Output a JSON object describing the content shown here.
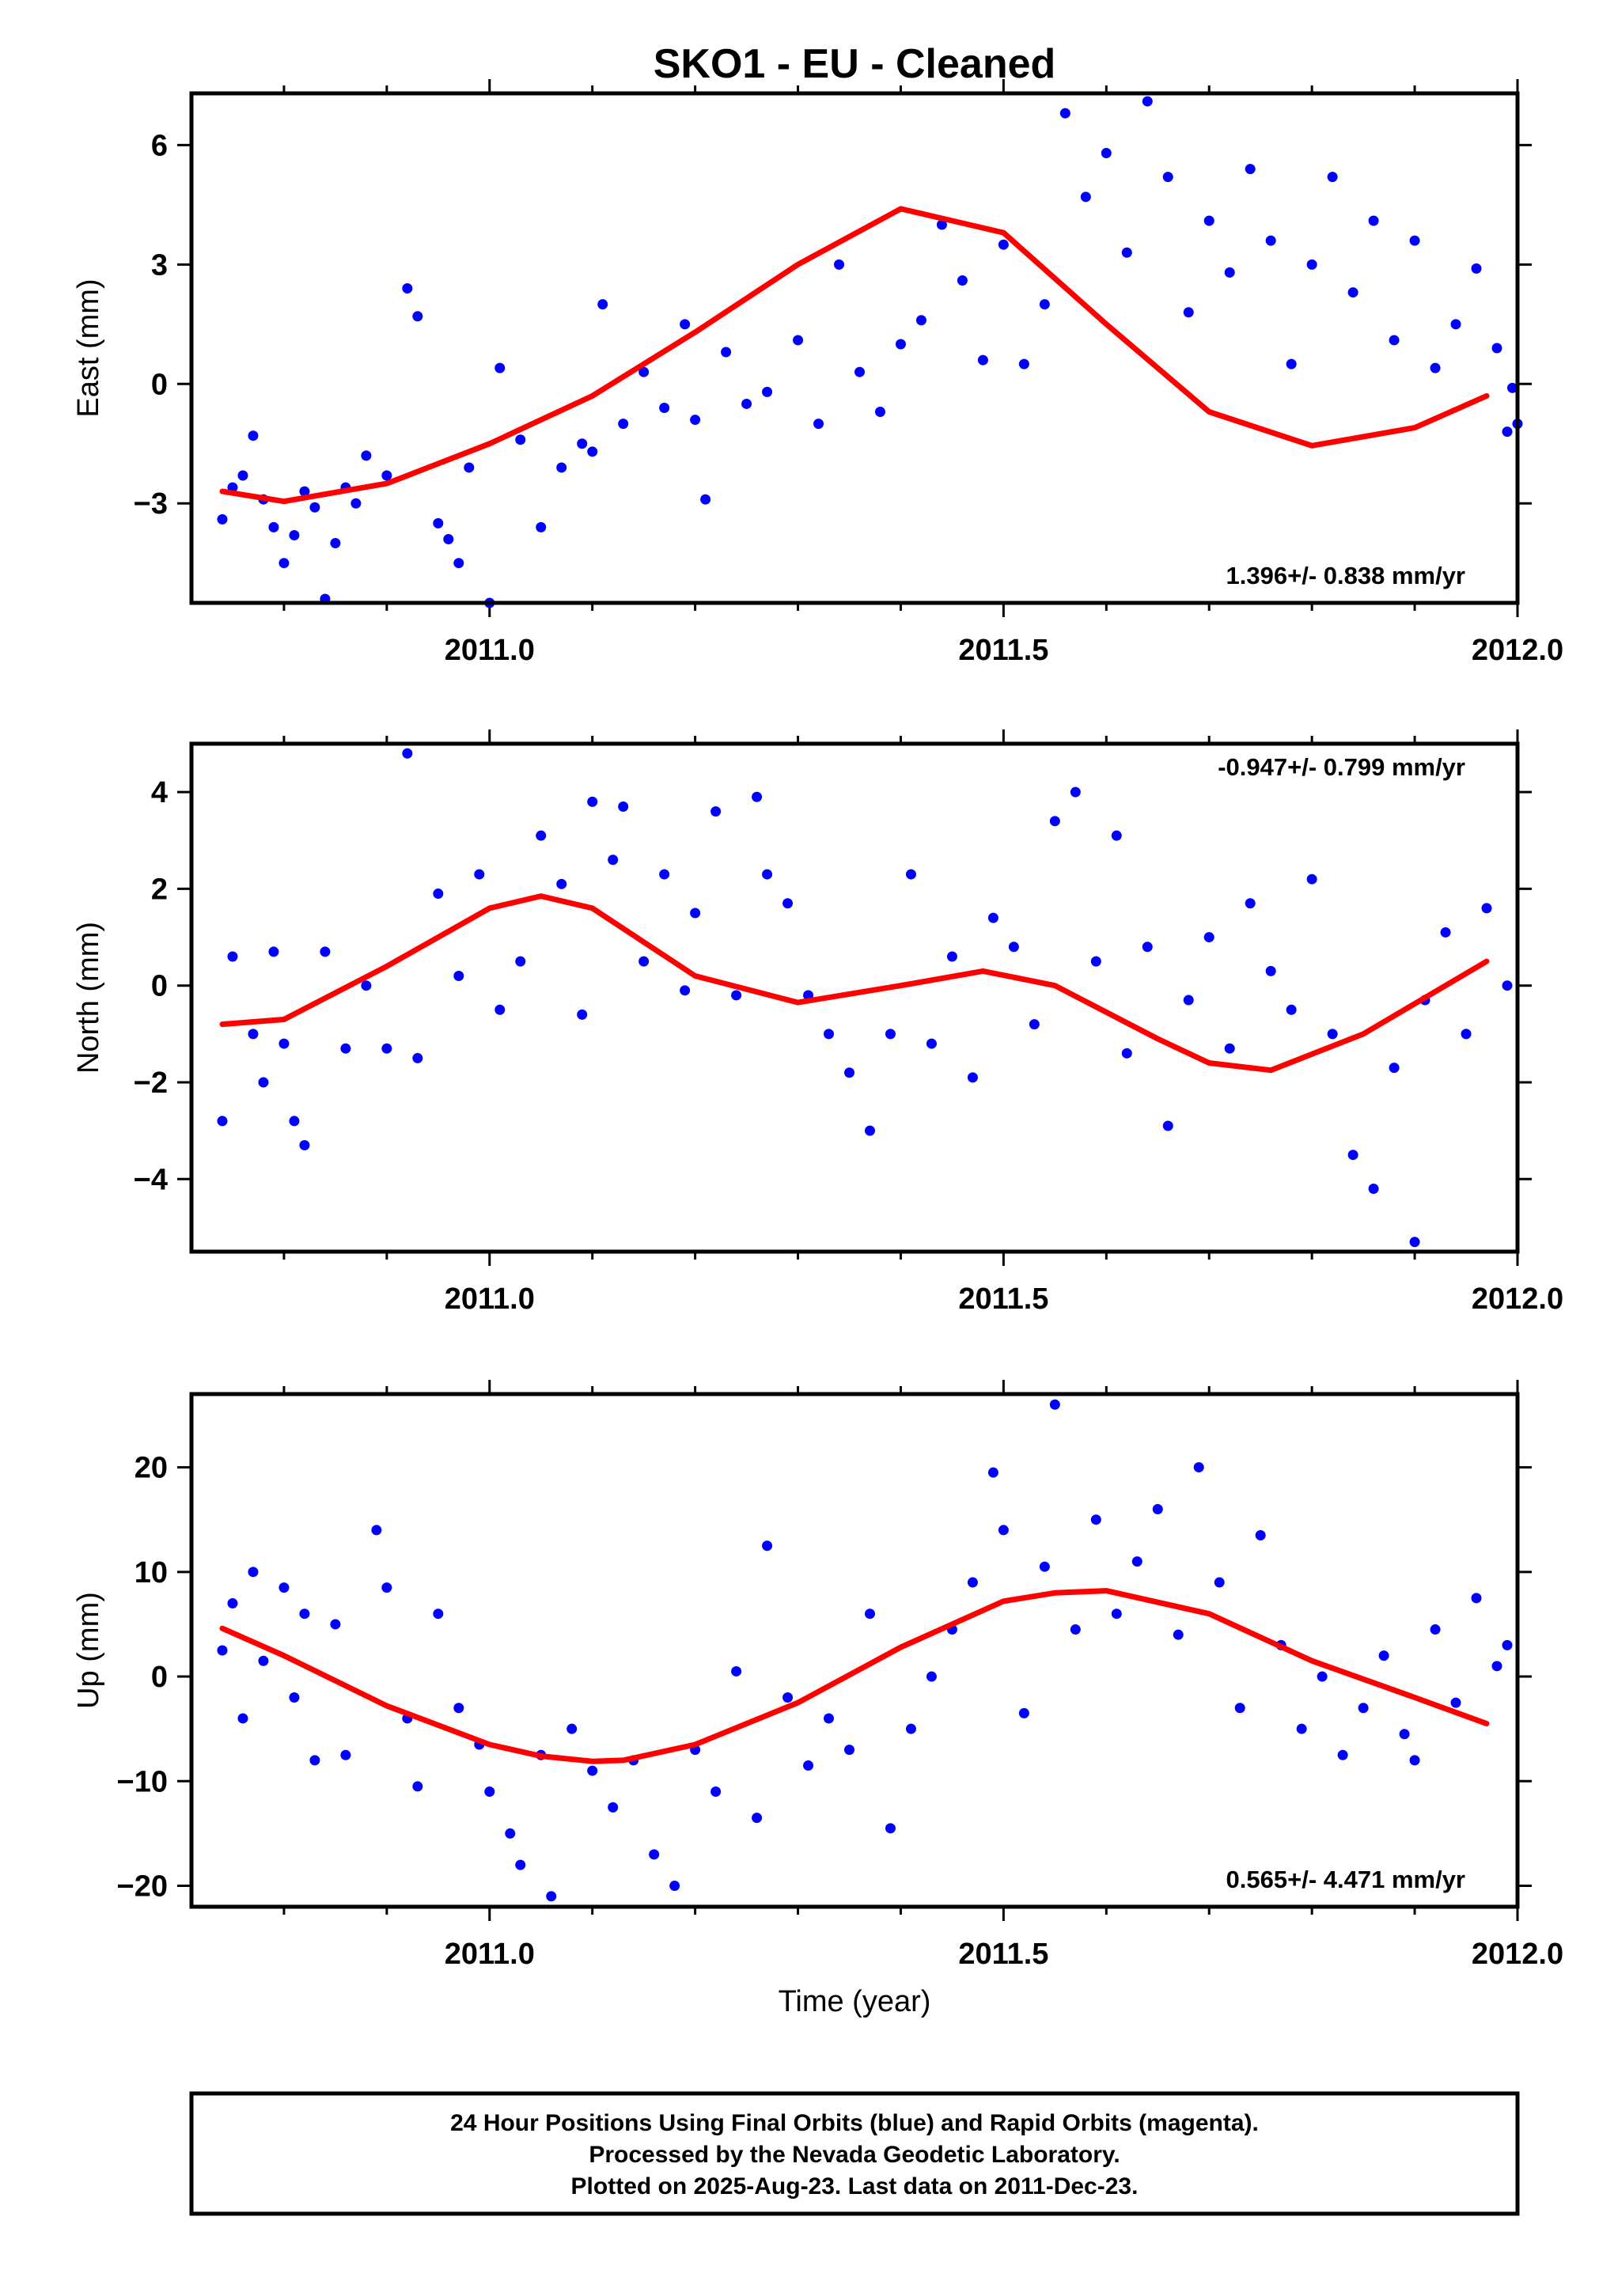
{
  "figure": {
    "title": "SKO1  - EU - Cleaned",
    "xlabel": "Time (year)",
    "footer_lines": [
      "24 Hour Positions Using Final Orbits (blue) and Rapid Orbits (magenta).",
      "Processed by the Nevada Geodetic Laboratory.",
      "Plotted on 2025-Aug-23. Last data on 2011-Dec-23."
    ],
    "colors": {
      "points": "#0000ff",
      "fit": "#ff0000",
      "frame": "#000000"
    }
  },
  "chart_data": [
    {
      "type": "scatter",
      "name": "east",
      "ylabel": "East (mm)",
      "xlim": [
        2010.71,
        2012.0
      ],
      "ylim": [
        -5.5,
        7.3
      ],
      "xticks": [
        2011.0,
        2011.5,
        2012.0
      ],
      "xtick_labels": [
        "2011.0",
        "2011.5",
        "2012.0"
      ],
      "yticks": [
        -3,
        0,
        3,
        6
      ],
      "ytick_labels": [
        "−3",
        "0",
        "3",
        "6"
      ],
      "rate_label": "1.396+/- 0.838 mm/yr",
      "rate_position": "bottom-right",
      "trend": {
        "x": [
          2010.74,
          2010.8,
          2010.9,
          2011.0,
          2011.1,
          2011.2,
          2011.3,
          2011.4,
          2011.5,
          2011.6,
          2011.7,
          2011.8,
          2011.9,
          2011.97
        ],
        "y": [
          -2.7,
          -2.95,
          -2.5,
          -1.5,
          -0.3,
          1.3,
          3.0,
          4.4,
          3.8,
          1.5,
          -0.7,
          -1.55,
          -1.1,
          -0.3
        ]
      },
      "points": [
        [
          2010.74,
          -3.4
        ],
        [
          2010.75,
          -2.6
        ],
        [
          2010.76,
          -2.3
        ],
        [
          2010.77,
          -1.3
        ],
        [
          2010.78,
          -2.9
        ],
        [
          2010.79,
          -3.6
        ],
        [
          2010.8,
          -4.5
        ],
        [
          2010.81,
          -3.8
        ],
        [
          2010.82,
          -2.7
        ],
        [
          2010.83,
          -3.1
        ],
        [
          2010.84,
          -5.4
        ],
        [
          2010.85,
          -4.0
        ],
        [
          2010.86,
          -2.6
        ],
        [
          2010.87,
          -3.0
        ],
        [
          2010.88,
          -1.8
        ],
        [
          2010.9,
          -2.3
        ],
        [
          2010.92,
          2.4
        ],
        [
          2010.93,
          1.7
        ],
        [
          2010.95,
          -3.5
        ],
        [
          2010.96,
          -3.9
        ],
        [
          2010.97,
          -4.5
        ],
        [
          2010.98,
          -2.1
        ],
        [
          2011.0,
          -5.5
        ],
        [
          2011.01,
          0.4
        ],
        [
          2011.03,
          -1.4
        ],
        [
          2011.05,
          -3.6
        ],
        [
          2011.07,
          -2.1
        ],
        [
          2011.09,
          -1.5
        ],
        [
          2011.1,
          -1.7
        ],
        [
          2011.11,
          2.0
        ],
        [
          2011.13,
          -1.0
        ],
        [
          2011.15,
          0.3
        ],
        [
          2011.17,
          -0.6
        ],
        [
          2011.19,
          1.5
        ],
        [
          2011.2,
          -0.9
        ],
        [
          2011.21,
          -2.9
        ],
        [
          2011.23,
          0.8
        ],
        [
          2011.25,
          -0.5
        ],
        [
          2011.27,
          -0.2
        ],
        [
          2011.3,
          1.1
        ],
        [
          2011.32,
          -1.0
        ],
        [
          2011.34,
          3.0
        ],
        [
          2011.36,
          0.3
        ],
        [
          2011.38,
          -0.7
        ],
        [
          2011.4,
          1.0
        ],
        [
          2011.42,
          1.6
        ],
        [
          2011.44,
          4.0
        ],
        [
          2011.46,
          2.6
        ],
        [
          2011.48,
          0.6
        ],
        [
          2011.5,
          3.5
        ],
        [
          2011.52,
          0.5
        ],
        [
          2011.54,
          2.0
        ],
        [
          2011.56,
          6.8
        ],
        [
          2011.58,
          4.7
        ],
        [
          2011.6,
          5.8
        ],
        [
          2011.62,
          3.3
        ],
        [
          2011.64,
          7.1
        ],
        [
          2011.66,
          5.2
        ],
        [
          2011.68,
          1.8
        ],
        [
          2011.7,
          4.1
        ],
        [
          2011.72,
          2.8
        ],
        [
          2011.74,
          5.4
        ],
        [
          2011.76,
          3.6
        ],
        [
          2011.78,
          0.5
        ],
        [
          2011.8,
          3.0
        ],
        [
          2011.82,
          5.2
        ],
        [
          2011.84,
          2.3
        ],
        [
          2011.86,
          4.1
        ],
        [
          2011.88,
          1.1
        ],
        [
          2011.9,
          3.6
        ],
        [
          2011.92,
          0.4
        ],
        [
          2011.94,
          1.5
        ],
        [
          2011.96,
          2.9
        ],
        [
          2011.98,
          0.9
        ],
        [
          2011.99,
          -1.2
        ],
        [
          2011.995,
          -0.1
        ],
        [
          2012.0,
          -1.0
        ]
      ]
    },
    {
      "type": "scatter",
      "name": "north",
      "ylabel": "North (mm)",
      "xlim": [
        2010.71,
        2012.0
      ],
      "ylim": [
        -5.5,
        5.0
      ],
      "xticks": [
        2011.0,
        2011.5,
        2012.0
      ],
      "xtick_labels": [
        "2011.0",
        "2011.5",
        "2012.0"
      ],
      "yticks": [
        -4,
        -2,
        0,
        2,
        4
      ],
      "ytick_labels": [
        "−4",
        "−2",
        "0",
        "2",
        "4"
      ],
      "rate_label": "-0.947+/- 0.799 mm/yr",
      "rate_position": "top-right",
      "trend": {
        "x": [
          2010.74,
          2010.8,
          2010.9,
          2011.0,
          2011.05,
          2011.1,
          2011.2,
          2011.3,
          2011.4,
          2011.48,
          2011.55,
          2011.65,
          2011.7,
          2011.76,
          2011.85,
          2011.97
        ],
        "y": [
          -0.8,
          -0.7,
          0.4,
          1.6,
          1.85,
          1.6,
          0.2,
          -0.35,
          0.0,
          0.3,
          0.0,
          -1.1,
          -1.6,
          -1.75,
          -1.0,
          0.5
        ]
      },
      "points": [
        [
          2010.74,
          -2.8
        ],
        [
          2010.75,
          0.6
        ],
        [
          2010.77,
          -1.0
        ],
        [
          2010.78,
          -2.0
        ],
        [
          2010.79,
          0.7
        ],
        [
          2010.8,
          -1.2
        ],
        [
          2010.81,
          -2.8
        ],
        [
          2010.82,
          -3.3
        ],
        [
          2010.84,
          0.7
        ],
        [
          2010.86,
          -1.3
        ],
        [
          2010.88,
          0.0
        ],
        [
          2010.9,
          -1.3
        ],
        [
          2010.92,
          4.8
        ],
        [
          2010.93,
          -1.5
        ],
        [
          2010.95,
          1.9
        ],
        [
          2010.97,
          0.2
        ],
        [
          2010.99,
          2.3
        ],
        [
          2011.01,
          -0.5
        ],
        [
          2011.03,
          0.5
        ],
        [
          2011.05,
          3.1
        ],
        [
          2011.07,
          2.1
        ],
        [
          2011.09,
          -0.6
        ],
        [
          2011.1,
          3.8
        ],
        [
          2011.12,
          2.6
        ],
        [
          2011.13,
          3.7
        ],
        [
          2011.15,
          0.5
        ],
        [
          2011.17,
          2.3
        ],
        [
          2011.19,
          -0.1
        ],
        [
          2011.2,
          1.5
        ],
        [
          2011.22,
          3.6
        ],
        [
          2011.24,
          -0.2
        ],
        [
          2011.26,
          3.9
        ],
        [
          2011.27,
          2.3
        ],
        [
          2011.29,
          1.7
        ],
        [
          2011.31,
          -0.2
        ],
        [
          2011.33,
          -1.0
        ],
        [
          2011.35,
          -1.8
        ],
        [
          2011.37,
          -3.0
        ],
        [
          2011.39,
          -1.0
        ],
        [
          2011.41,
          2.3
        ],
        [
          2011.43,
          -1.2
        ],
        [
          2011.45,
          0.6
        ],
        [
          2011.47,
          -1.9
        ],
        [
          2011.49,
          1.4
        ],
        [
          2011.51,
          0.8
        ],
        [
          2011.53,
          -0.8
        ],
        [
          2011.55,
          3.4
        ],
        [
          2011.57,
          4.0
        ],
        [
          2011.59,
          0.5
        ],
        [
          2011.61,
          3.1
        ],
        [
          2011.62,
          -1.4
        ],
        [
          2011.64,
          0.8
        ],
        [
          2011.66,
          -2.9
        ],
        [
          2011.68,
          -0.3
        ],
        [
          2011.7,
          1.0
        ],
        [
          2011.72,
          -1.3
        ],
        [
          2011.74,
          1.7
        ],
        [
          2011.76,
          0.3
        ],
        [
          2011.78,
          -0.5
        ],
        [
          2011.8,
          2.2
        ],
        [
          2011.82,
          -1.0
        ],
        [
          2011.84,
          -3.5
        ],
        [
          2011.86,
          -4.2
        ],
        [
          2011.88,
          -1.7
        ],
        [
          2011.9,
          -5.3
        ],
        [
          2011.91,
          -0.3
        ],
        [
          2011.93,
          1.1
        ],
        [
          2011.95,
          -1.0
        ],
        [
          2011.97,
          1.6
        ],
        [
          2011.99,
          0.0
        ]
      ]
    },
    {
      "type": "scatter",
      "name": "up",
      "ylabel": "Up (mm)",
      "xlim": [
        2010.71,
        2012.0
      ],
      "ylim": [
        -22,
        27
      ],
      "xticks": [
        2011.0,
        2011.5,
        2012.0
      ],
      "xtick_labels": [
        "2011.0",
        "2011.5",
        "2012.0"
      ],
      "yticks": [
        -20,
        -10,
        0,
        10,
        20
      ],
      "ytick_labels": [
        "−20",
        "−10",
        "0",
        "10",
        "20"
      ],
      "rate_label": "0.565+/- 4.471 mm/yr",
      "rate_position": "bottom-right",
      "trend": {
        "x": [
          2010.74,
          2010.8,
          2010.9,
          2011.0,
          2011.05,
          2011.1,
          2011.13,
          2011.2,
          2011.3,
          2011.4,
          2011.5,
          2011.55,
          2011.6,
          2011.7,
          2011.8,
          2011.9,
          2011.97
        ],
        "y": [
          4.6,
          2.0,
          -2.8,
          -6.5,
          -7.6,
          -8.1,
          -8.0,
          -6.5,
          -2.5,
          2.8,
          7.2,
          8.0,
          8.2,
          6.0,
          1.5,
          -2.0,
          -4.5
        ]
      },
      "points": [
        [
          2010.74,
          2.5
        ],
        [
          2010.75,
          7.0
        ],
        [
          2010.76,
          -4.0
        ],
        [
          2010.77,
          10.0
        ],
        [
          2010.78,
          1.5
        ],
        [
          2010.8,
          8.5
        ],
        [
          2010.81,
          -2.0
        ],
        [
          2010.82,
          6.0
        ],
        [
          2010.83,
          -8.0
        ],
        [
          2010.85,
          5.0
        ],
        [
          2010.86,
          -7.5
        ],
        [
          2010.89,
          14.0
        ],
        [
          2010.9,
          8.5
        ],
        [
          2010.92,
          -4.0
        ],
        [
          2010.93,
          -10.5
        ],
        [
          2010.95,
          6.0
        ],
        [
          2010.97,
          -3.0
        ],
        [
          2010.99,
          -6.5
        ],
        [
          2011.0,
          -11.0
        ],
        [
          2011.02,
          -15.0
        ],
        [
          2011.03,
          -18.0
        ],
        [
          2011.05,
          -7.5
        ],
        [
          2011.06,
          -21.0
        ],
        [
          2011.08,
          -5.0
        ],
        [
          2011.1,
          -9.0
        ],
        [
          2011.12,
          -12.5
        ],
        [
          2011.14,
          -8.0
        ],
        [
          2011.16,
          -17.0
        ],
        [
          2011.18,
          -20.0
        ],
        [
          2011.2,
          -7.0
        ],
        [
          2011.22,
          -11.0
        ],
        [
          2011.24,
          0.5
        ],
        [
          2011.26,
          -13.5
        ],
        [
          2011.27,
          12.5
        ],
        [
          2011.29,
          -2.0
        ],
        [
          2011.31,
          -8.5
        ],
        [
          2011.33,
          -4.0
        ],
        [
          2011.35,
          -7.0
        ],
        [
          2011.37,
          6.0
        ],
        [
          2011.39,
          -14.5
        ],
        [
          2011.41,
          -5.0
        ],
        [
          2011.43,
          0.0
        ],
        [
          2011.45,
          4.5
        ],
        [
          2011.47,
          9.0
        ],
        [
          2011.49,
          19.5
        ],
        [
          2011.5,
          14.0
        ],
        [
          2011.52,
          -3.5
        ],
        [
          2011.54,
          10.5
        ],
        [
          2011.55,
          26.0
        ],
        [
          2011.57,
          4.5
        ],
        [
          2011.59,
          15.0
        ],
        [
          2011.61,
          6.0
        ],
        [
          2011.63,
          11.0
        ],
        [
          2011.65,
          16.0
        ],
        [
          2011.67,
          4.0
        ],
        [
          2011.69,
          20.0
        ],
        [
          2011.71,
          9.0
        ],
        [
          2011.73,
          -3.0
        ],
        [
          2011.75,
          13.5
        ],
        [
          2011.77,
          3.0
        ],
        [
          2011.79,
          -5.0
        ],
        [
          2011.81,
          0.0
        ],
        [
          2011.83,
          -7.5
        ],
        [
          2011.85,
          -3.0
        ],
        [
          2011.87,
          2.0
        ],
        [
          2011.89,
          -5.5
        ],
        [
          2011.9,
          -8.0
        ],
        [
          2011.92,
          4.5
        ],
        [
          2011.94,
          -2.5
        ],
        [
          2011.96,
          7.5
        ],
        [
          2011.98,
          1.0
        ],
        [
          2011.99,
          3.0
        ]
      ]
    }
  ]
}
